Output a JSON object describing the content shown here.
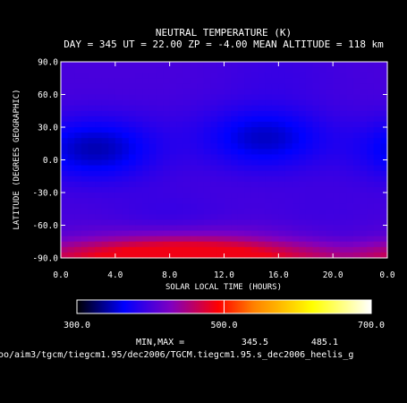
{
  "chart_data": {
    "type": "heatmap",
    "title": "NEUTRAL TEMPERATURE (K)",
    "subtitle": "DAY = 345   UT = 22.00   ZP =   -4.00   MEAN ALTITUDE = 118 km",
    "xlabel": "SOLAR LOCAL TIME (HOURS)",
    "ylabel": "LATITUDE (DEGREES GEOGRAPHIC)",
    "x_ticks": [
      "0.0",
      "4.0",
      "8.0",
      "12.0",
      "16.0",
      "20.0",
      "0.0"
    ],
    "x_tick_values": [
      0,
      4,
      8,
      12,
      16,
      20,
      24
    ],
    "y_ticks": [
      "90.0",
      "60.0",
      "30.0",
      "0.0",
      "-30.0",
      "-60.0",
      "-90.0"
    ],
    "y_tick_values": [
      90,
      60,
      30,
      0,
      -30,
      -60,
      -90
    ],
    "xlim": [
      0,
      24
    ],
    "ylim": [
      -90,
      90
    ],
    "colorbar": {
      "min": 300.0,
      "max": 700.0,
      "tick_labels": [
        "300.0",
        "500.0",
        "700.0"
      ],
      "tick_values": [
        300,
        500,
        700
      ],
      "colors": [
        "#000000",
        "#0000ff",
        "#8000c0",
        "#ff0000",
        "#ff8000",
        "#ffff00",
        "#ffffff"
      ],
      "stops": [
        0.0,
        0.16,
        0.32,
        0.48,
        0.6,
        0.8,
        1.0
      ]
    },
    "minmax_label": "MIN,MAX =",
    "min_value": "345.5",
    "max_value": "485.1",
    "min": 345.5,
    "max": 485.1,
    "source_path": "oo/aim3/tgcm/tiegcm1.95/dec2006/TGCM.tiegcm1.95.s_dec2006_heelis_g",
    "field_features": [
      {
        "type": "min",
        "lt": 2.5,
        "lat": 10,
        "value": 345.5
      },
      {
        "type": "min",
        "lt": 15.0,
        "lat": 20,
        "value": 350
      },
      {
        "type": "min",
        "lt": 8.0,
        "lat": -55,
        "value": 390
      },
      {
        "type": "min",
        "lt": 19.0,
        "lat": -48,
        "value": 395
      },
      {
        "type": "max",
        "lt": 9.0,
        "lat": -87,
        "value": 485.1
      },
      {
        "type": "max",
        "lt": 21.5,
        "lat": 25,
        "value": 400
      },
      {
        "type": "max",
        "lt": 8.5,
        "lat": 30,
        "value": 398
      },
      {
        "type": "max",
        "lt": 16.0,
        "lat": 80,
        "value": 392
      }
    ]
  }
}
